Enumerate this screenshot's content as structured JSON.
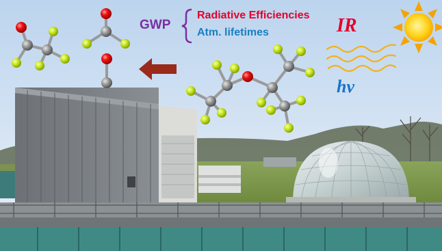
{
  "labels": {
    "gwp": "GWP",
    "radiative_efficiencies": "Radiative Efficiencies",
    "atm_lifetimes": "Atm. lifetimes",
    "ir": "IR",
    "hv": "hν"
  },
  "colors": {
    "gwp": "#7a2fa0",
    "radiative_efficiencies": "#e4002b",
    "atm_lifetimes": "#1a7fc1",
    "ir": "#e4002b",
    "hv": "#1a73c8",
    "oxygen_atom": "#e60000",
    "carbon_atom": "#8a8a8a",
    "fluorine_atom": "#c8e61e",
    "arrow": "#9a2a1a",
    "sun": "#ffd21a",
    "waves": "#f2b21a"
  },
  "scene": {
    "description_icons": [
      "molecule-cf3cof-icon",
      "molecule-cof2-icon",
      "molecule-co-icon",
      "molecule-hfe-icon",
      "sun-icon",
      "ir-waves-icon",
      "degradation-arrow-icon",
      "smog-chamber-dome",
      "laboratory-building"
    ]
  }
}
